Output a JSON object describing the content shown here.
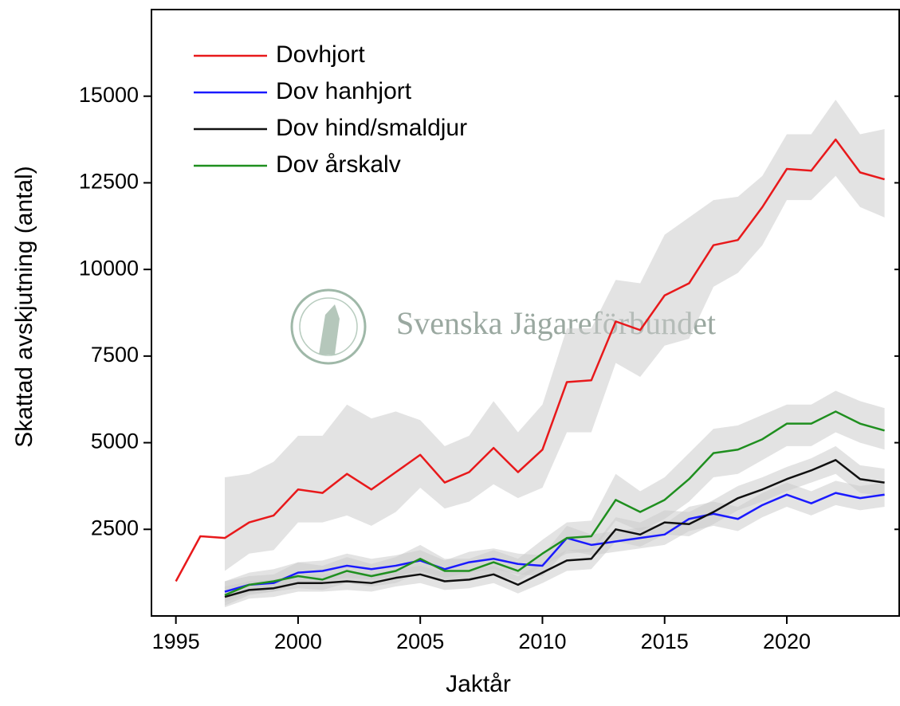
{
  "chart_data": {
    "type": "line",
    "ylabel": "Skattad avskjutning (antal)",
    "xlabel": "Jaktår",
    "watermark": "Svenska Jägareförbundet",
    "band_color": "#cccccc",
    "x": [
      1995,
      1996,
      1997,
      1998,
      1999,
      2000,
      2001,
      2002,
      2003,
      2004,
      2005,
      2006,
      2007,
      2008,
      2009,
      2010,
      2011,
      2012,
      2013,
      2014,
      2015,
      2016,
      2017,
      2018,
      2019,
      2020,
      2021,
      2022,
      2023,
      2024
    ],
    "xlim": [
      1994,
      2024.6
    ],
    "xticks": [
      1995,
      2000,
      2005,
      2010,
      2015,
      2020
    ],
    "ylim": [
      0,
      17500
    ],
    "yticks": [
      2500,
      5000,
      7500,
      10000,
      12500,
      15000
    ],
    "legend": "upper left",
    "series": [
      {
        "name": "Dovhjort",
        "color": "#e8191b",
        "values": [
          1000,
          2300,
          2250,
          2700,
          2900,
          3650,
          3550,
          4100,
          3650,
          4150,
          4650,
          3850,
          4150,
          4850,
          4150,
          4800,
          6750,
          6800,
          8500,
          8250,
          9250,
          9600,
          10700,
          10850,
          11800,
          12900,
          12850,
          13750,
          12800,
          12600
        ],
        "band_lower": [
          null,
          null,
          1300,
          1800,
          1900,
          2700,
          2700,
          2900,
          2600,
          3000,
          3700,
          3100,
          3300,
          3800,
          3400,
          3700,
          5300,
          5300,
          7300,
          6900,
          7800,
          8000,
          9500,
          9900,
          10700,
          12000,
          12000,
          12700,
          11800,
          11500
        ],
        "band_upper": [
          null,
          null,
          4000,
          4100,
          4450,
          5200,
          5200,
          6100,
          5700,
          5900,
          5650,
          4900,
          5200,
          6200,
          5300,
          6100,
          8300,
          8300,
          9700,
          9600,
          11000,
          11500,
          12000,
          12100,
          12700,
          13900,
          13900,
          14900,
          13900,
          14050
        ]
      },
      {
        "name": "Dov hanhjort",
        "color": "#1a1aff",
        "values": [
          null,
          null,
          700,
          900,
          950,
          1250,
          1300,
          1450,
          1350,
          1450,
          1600,
          1350,
          1550,
          1650,
          1500,
          1450,
          2250,
          2050,
          2150,
          2250,
          2350,
          2800,
          2950,
          2800,
          3200,
          3500,
          3250,
          3550,
          3400,
          3500
        ],
        "band_lower": [
          null,
          null,
          400,
          650,
          700,
          950,
          1000,
          1100,
          1050,
          1150,
          1300,
          1100,
          1250,
          1350,
          1200,
          1150,
          1900,
          1750,
          1850,
          1950,
          2050,
          2450,
          2600,
          2450,
          2850,
          3150,
          2900,
          3200,
          3050,
          3150
        ],
        "band_upper": [
          null,
          null,
          1000,
          1150,
          1200,
          1550,
          1600,
          1800,
          1650,
          1750,
          1900,
          1600,
          1850,
          1950,
          1800,
          1750,
          2600,
          2350,
          2450,
          2550,
          2650,
          3150,
          3300,
          3150,
          3550,
          3850,
          3600,
          3900,
          3750,
          3850
        ]
      },
      {
        "name": "Dov hind/smaldjur",
        "color": "#111111",
        "values": [
          null,
          null,
          550,
          750,
          800,
          950,
          950,
          1000,
          950,
          1100,
          1200,
          1000,
          1050,
          1200,
          900,
          1250,
          1600,
          1650,
          2500,
          2350,
          2700,
          2650,
          3000,
          3400,
          3650,
          3950,
          4200,
          4500,
          3950,
          3850
        ],
        "band_lower": [
          null,
          null,
          250,
          500,
          550,
          700,
          700,
          750,
          700,
          850,
          950,
          750,
          800,
          950,
          650,
          950,
          1300,
          1350,
          2150,
          2000,
          2350,
          2300,
          2650,
          3050,
          3300,
          3600,
          3850,
          4100,
          3550,
          3450
        ],
        "band_upper": [
          null,
          null,
          850,
          1000,
          1050,
          1200,
          1200,
          1250,
          1200,
          1350,
          1450,
          1250,
          1300,
          1450,
          1150,
          1550,
          1900,
          1950,
          2850,
          2700,
          3050,
          3000,
          3350,
          3750,
          4000,
          4300,
          4550,
          4900,
          4350,
          4250
        ]
      },
      {
        "name": "Dov årskalv",
        "color": "#1f8f1f",
        "values": [
          null,
          null,
          600,
          900,
          1000,
          1150,
          1050,
          1300,
          1150,
          1300,
          1650,
          1300,
          1300,
          1550,
          1300,
          1800,
          2250,
          2300,
          3350,
          3000,
          3350,
          3950,
          4700,
          4800,
          5100,
          5550,
          5550,
          5900,
          5550,
          5350
        ],
        "band_lower": [
          null,
          null,
          300,
          600,
          700,
          800,
          750,
          950,
          850,
          950,
          1250,
          1000,
          1000,
          1200,
          1000,
          1450,
          1800,
          1850,
          2750,
          2450,
          2800,
          3300,
          4000,
          4100,
          4500,
          4900,
          4900,
          5300,
          5000,
          4800
        ],
        "band_upper": [
          null,
          null,
          1000,
          1250,
          1350,
          1550,
          1450,
          1700,
          1500,
          1700,
          2050,
          1650,
          1650,
          1900,
          1650,
          2200,
          2700,
          2750,
          4100,
          3600,
          4000,
          4700,
          5400,
          5500,
          5800,
          6100,
          6100,
          6500,
          6200,
          6000
        ]
      }
    ]
  }
}
